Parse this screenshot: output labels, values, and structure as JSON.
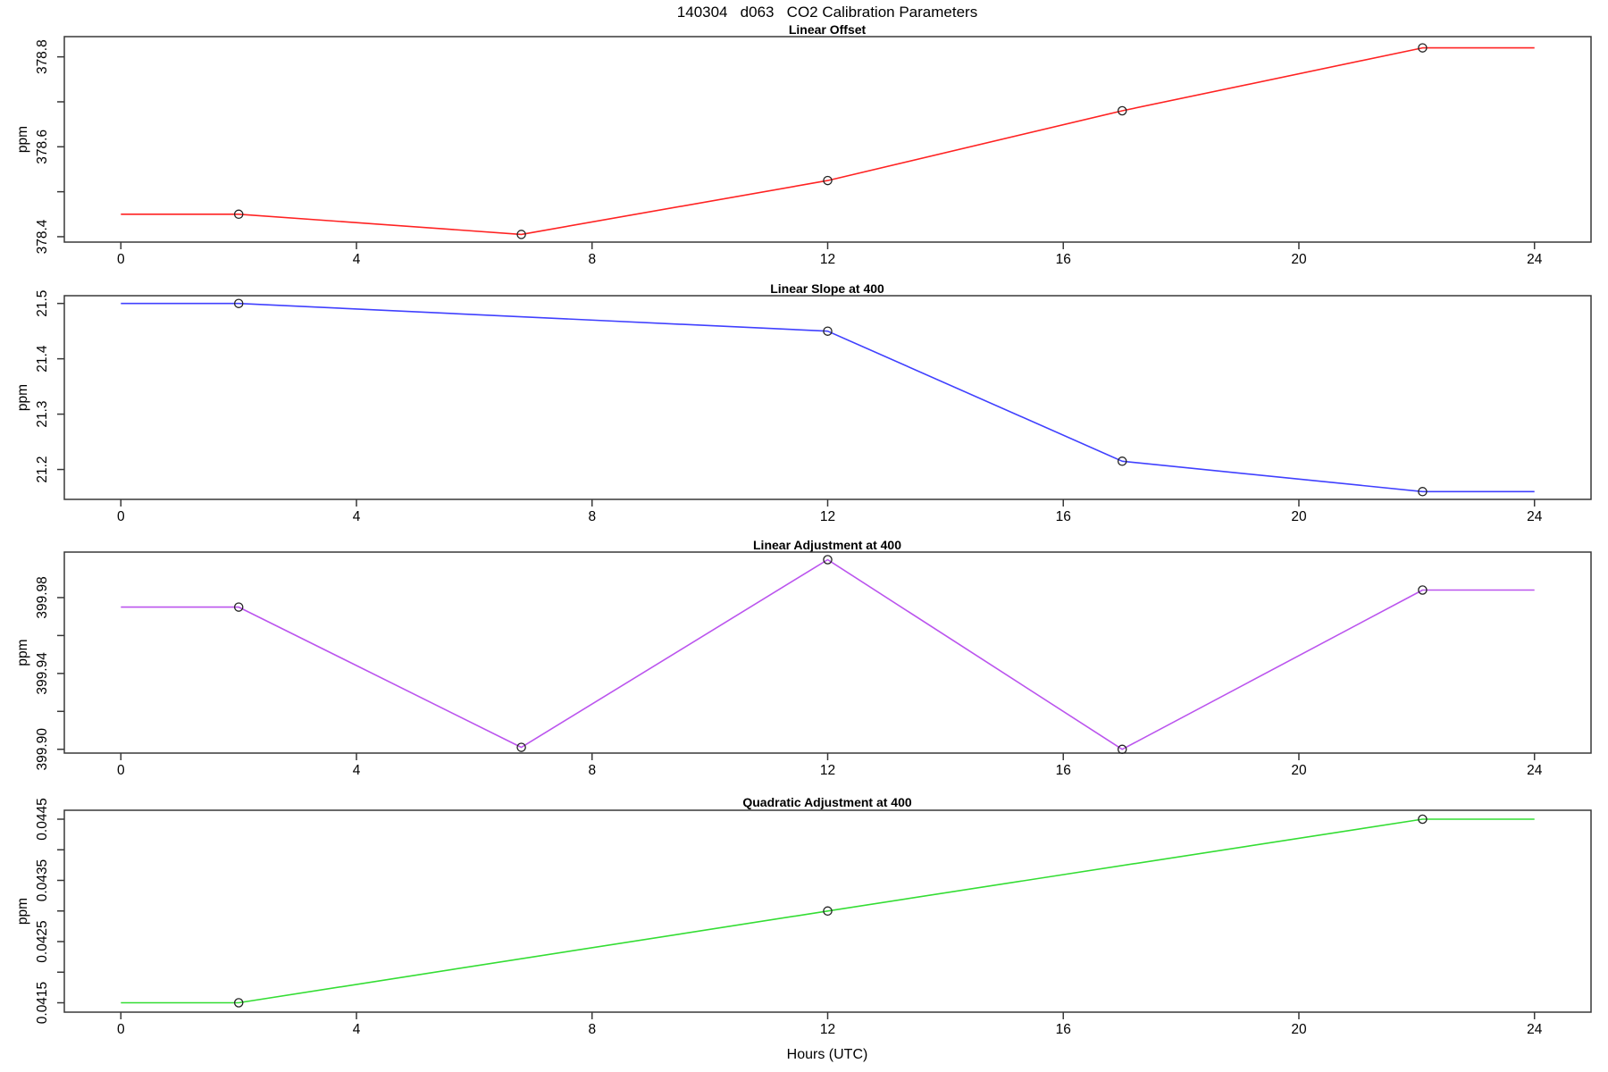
{
  "figure_title": "140304   d063   CO2 Calibration Parameters",
  "x_axis": {
    "label": "Hours (UTC)",
    "ticks": [
      0,
      4,
      8,
      12,
      16,
      20,
      24
    ],
    "tick_labels": [
      "0",
      "4",
      "8",
      "12",
      "16",
      "20",
      "24"
    ],
    "lim": [
      -0.96,
      24.96
    ]
  },
  "marker_color": "#222222",
  "chart_data": [
    {
      "type": "line",
      "title": "Linear Offset",
      "ylabel": "ppm",
      "color": "#ff2222",
      "ylim": [
        378.388,
        378.845
      ],
      "y_ticks": [
        378.4,
        378.5,
        378.6,
        378.7,
        378.8
      ],
      "y_tick_labels": [
        "378.4",
        "",
        "378.6",
        "",
        "378.8"
      ],
      "line": {
        "x": [
          0,
          2,
          6.8,
          12,
          17,
          22.1,
          24
        ],
        "y": [
          378.45,
          378.45,
          378.405,
          378.525,
          378.68,
          378.82,
          378.82
        ]
      },
      "points": {
        "x": [
          2,
          6.8,
          12,
          17,
          22.1
        ],
        "y": [
          378.45,
          378.405,
          378.525,
          378.68,
          378.82
        ]
      }
    },
    {
      "type": "line",
      "title": "Linear Slope at 400",
      "ylabel": "ppm",
      "color": "#4040ff",
      "ylim": [
        21.146,
        21.514
      ],
      "y_ticks": [
        21.2,
        21.3,
        21.4,
        21.5
      ],
      "y_tick_labels": [
        "21.2",
        "21.3",
        "21.4",
        "21.5"
      ],
      "line": {
        "x": [
          0,
          2,
          12,
          17,
          22.1,
          24
        ],
        "y": [
          21.5,
          21.5,
          21.45,
          21.215,
          21.16,
          21.16
        ]
      },
      "points": {
        "x": [
          2,
          12,
          17,
          22.1
        ],
        "y": [
          21.5,
          21.45,
          21.215,
          21.16
        ]
      }
    },
    {
      "type": "line",
      "title": "Linear Adjustment at 400",
      "ylabel": "ppm",
      "color": "#bb55ee",
      "ylim": [
        399.898,
        400.004
      ],
      "y_ticks": [
        399.9,
        399.92,
        399.94,
        399.96,
        399.98
      ],
      "y_tick_labels": [
        "399.90",
        "",
        "399.94",
        "",
        "399.98"
      ],
      "line": {
        "x": [
          0,
          2,
          6.8,
          12,
          17,
          22.1,
          24
        ],
        "y": [
          399.975,
          399.975,
          399.901,
          400.0,
          399.9,
          399.984,
          399.984
        ]
      },
      "points": {
        "x": [
          2,
          6.8,
          12,
          17,
          22.1
        ],
        "y": [
          399.975,
          399.901,
          400.0,
          399.9,
          399.984
        ]
      }
    },
    {
      "type": "line",
      "title": "Quadratic Adjustment at 400",
      "ylabel": "ppm",
      "color": "#33dd33",
      "ylim": [
        0.041347,
        0.044646
      ],
      "y_ticks": [
        0.0415,
        0.042,
        0.0425,
        0.043,
        0.0435,
        0.044,
        0.0445
      ],
      "y_tick_labels": [
        "0.0415",
        "",
        "0.0425",
        "",
        "0.0435",
        "",
        "0.0445"
      ],
      "line": {
        "x": [
          0,
          2,
          12,
          22.1,
          24
        ],
        "y": [
          0.0415,
          0.0415,
          0.043,
          0.0445,
          0.0445
        ]
      },
      "points": {
        "x": [
          2,
          12,
          22.1
        ],
        "y": [
          0.0415,
          0.043,
          0.0445
        ]
      }
    }
  ]
}
